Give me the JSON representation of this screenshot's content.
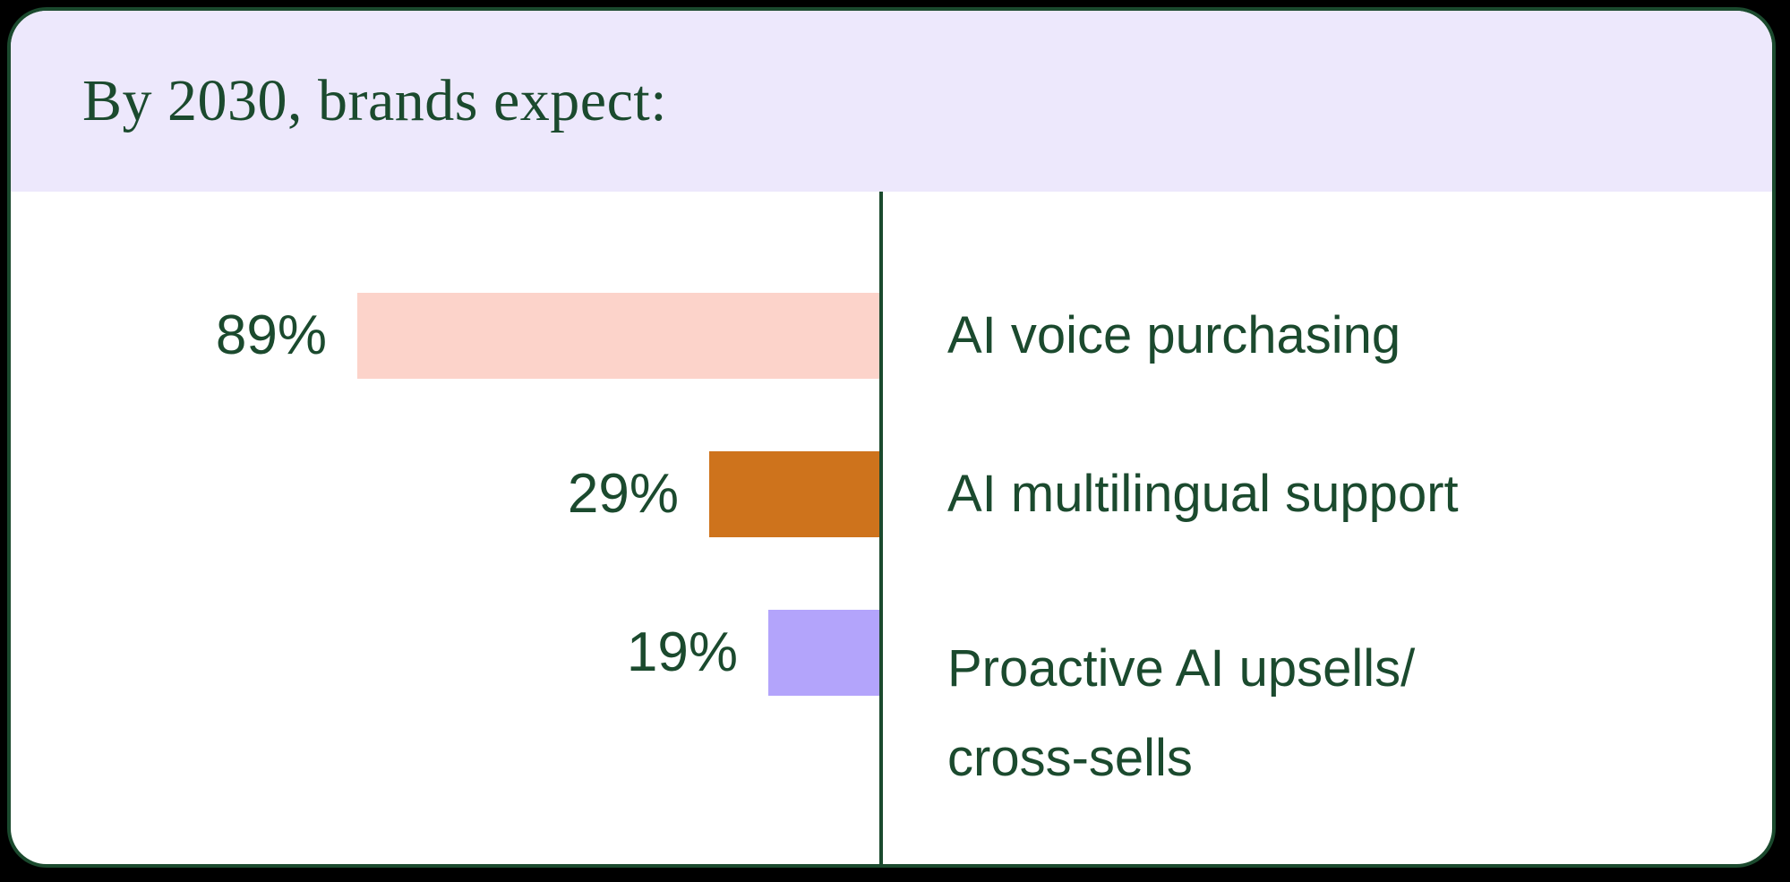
{
  "header": {
    "title": "By 2030, brands expect:"
  },
  "colors": {
    "background": "#000000",
    "card_border": "#1B4A2E",
    "header_background": "#EDE8FC",
    "text_green": "#1B4A2E",
    "bar_pink": "#FCD3CA",
    "bar_orange": "#CE731C",
    "bar_purple": "#B3A4FB"
  },
  "chart_data": {
    "type": "bar",
    "orientation": "horizontal",
    "title": "By 2030, brands expect:",
    "xlabel": "",
    "ylabel": "",
    "xlim": [
      0,
      100
    ],
    "grid": false,
    "legend": "none",
    "categories": [
      "AI voice purchasing",
      "AI multilingual support",
      "Proactive AI upsells/\ncross-sells"
    ],
    "values": [
      89,
      29,
      19
    ],
    "value_labels": [
      "89%",
      "29%",
      "19%"
    ],
    "bar_colors": [
      "#FCD3CA",
      "#CE731C",
      "#B3A4FB"
    ]
  }
}
